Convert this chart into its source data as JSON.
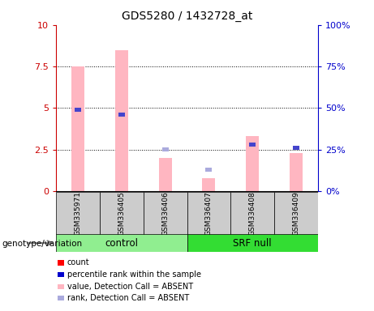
{
  "title": "GDS5280 / 1432728_at",
  "samples": [
    "GSM335971",
    "GSM336405",
    "GSM336406",
    "GSM336407",
    "GSM336408",
    "GSM336409"
  ],
  "group_colors": {
    "control": "#90EE90",
    "SRF null": "#33DD33"
  },
  "absent_bar_values": [
    7.5,
    8.5,
    2.0,
    0.8,
    3.3,
    2.3
  ],
  "absent_rank_values": [
    null,
    null,
    25,
    13,
    null,
    null
  ],
  "present_rank_values": [
    49,
    46,
    null,
    null,
    28,
    26
  ],
  "ylim_left": [
    0,
    10
  ],
  "ylim_right": [
    0,
    100
  ],
  "yticks_left": [
    0,
    2.5,
    5,
    7.5,
    10
  ],
  "yticks_right": [
    0,
    25,
    50,
    75,
    100
  ],
  "absent_bar_color": "#FFB6C1",
  "absent_rank_color": "#AAAADD",
  "present_rank_color": "#4444CC",
  "left_axis_color": "#CC0000",
  "right_axis_color": "#0000CC",
  "label_area_color": "#CCCCCC",
  "legend_items": [
    {
      "label": "count",
      "color": "#FF0000"
    },
    {
      "label": "percentile rank within the sample",
      "color": "#0000CC"
    },
    {
      "label": "value, Detection Call = ABSENT",
      "color": "#FFB6C1"
    },
    {
      "label": "rank, Detection Call = ABSENT",
      "color": "#AAAADD"
    }
  ]
}
